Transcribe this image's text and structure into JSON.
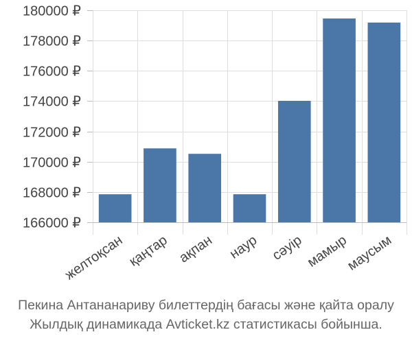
{
  "chart_data": {
    "type": "bar",
    "categories": [
      "желтоқсан",
      "қаңтар",
      "ақпан",
      "наур",
      "сәуір",
      "мамыр",
      "маусым"
    ],
    "values": [
      167850,
      170880,
      170520,
      167850,
      174020,
      179460,
      179190
    ],
    "ylim": [
      166000,
      180000
    ],
    "yticks": [
      166000,
      168000,
      170000,
      172000,
      174000,
      176000,
      178000,
      180000
    ],
    "ytick_labels": [
      "166000 ₽",
      "168000 ₽",
      "170000 ₽",
      "172000 ₽",
      "174000 ₽",
      "176000 ₽",
      "178000 ₽",
      "180000 ₽"
    ],
    "grid": true,
    "bar_color": "#4a76a8",
    "grid_color": "#dddddd",
    "axis_color": "#bbbbbb",
    "text_color": "#444444"
  },
  "caption": {
    "line1": "Пекина Антананариву билеттердің бағасы және қайта оралу",
    "line2": "Жылдық динамикада Avticket.kz статистикасы бойынша."
  }
}
